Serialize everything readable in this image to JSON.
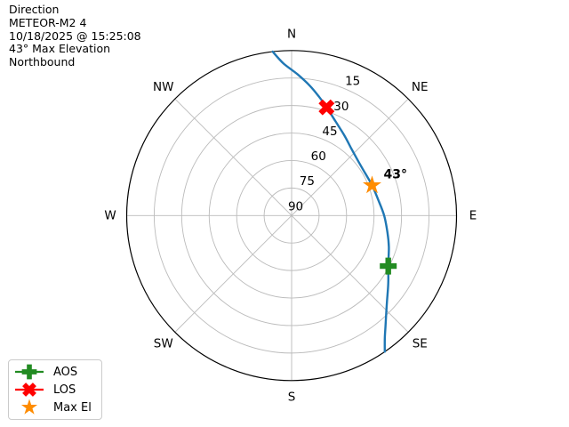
{
  "header": {
    "lines": [
      "Direction",
      "METEOR-M2 4",
      "10/18/2025 @ 15:25:08",
      "43° Max Elevation",
      "Northbound"
    ]
  },
  "legend": {
    "items": [
      {
        "label": "AOS",
        "symbol": "plus"
      },
      {
        "label": "LOS",
        "symbol": "x"
      },
      {
        "label": "Max El",
        "symbol": "star"
      }
    ]
  },
  "colors": {
    "track_blue": "#1f77b4",
    "aos_green": "#228b22",
    "los_red": "#ff0000",
    "max_el_orange": "#ff8c00",
    "grid_gray": "#bbbbbb",
    "horizon_black": "#000000",
    "text_black": "#000000",
    "legend_border": "#cbcbcb"
  },
  "chart_data": {
    "type": "line",
    "projection": "polar-skyplot",
    "title": "Direction",
    "satellite": "METEOR-M2 4",
    "pass_time": "10/18/2025 @ 15:25:08",
    "max_elevation_deg": 43,
    "pass_direction": "Northbound",
    "elevation_axis": {
      "outer_edge": 0,
      "center": 90
    },
    "compass_labels": [
      {
        "label": "N",
        "az": 0
      },
      {
        "label": "NE",
        "az": 45
      },
      {
        "label": "E",
        "az": 90
      },
      {
        "label": "SE",
        "az": 135
      },
      {
        "label": "S",
        "az": 180
      },
      {
        "label": "SW",
        "az": 225
      },
      {
        "label": "W",
        "az": 270
      },
      {
        "label": "NW",
        "az": 315
      }
    ],
    "elevation_rings": [
      15,
      30,
      45,
      60,
      75
    ],
    "ring_tick_labels": [
      {
        "text": "15",
        "el": 15
      },
      {
        "text": "30",
        "el": 30
      },
      {
        "text": "45",
        "el": 45
      },
      {
        "text": "60",
        "el": 60
      },
      {
        "text": "75",
        "el": 75
      },
      {
        "text": "90",
        "el": 90
      }
    ],
    "track_az_el": [
      [
        353.4,
        0
      ],
      [
        357,
        7
      ],
      [
        2.5,
        13
      ],
      [
        8,
        18.5
      ],
      [
        13,
        23.5
      ],
      [
        18,
        28
      ],
      [
        25,
        33.3
      ],
      [
        33,
        37.5
      ],
      [
        41,
        40.8
      ],
      [
        48,
        42.6
      ],
      [
        56,
        43.6
      ],
      [
        63,
        43.6
      ],
      [
        69.5,
        43.1
      ],
      [
        80,
        41.9
      ],
      [
        90,
        39.5
      ],
      [
        100,
        36.9
      ],
      [
        108,
        34.2
      ],
      [
        117.6,
        30.5
      ],
      [
        125,
        25.6
      ],
      [
        132.4,
        19.6
      ],
      [
        139.7,
        10.8
      ],
      [
        143,
        5.5
      ],
      [
        145.6,
        0
      ]
    ],
    "markers": [
      {
        "name": "AOS",
        "symbol": "plus",
        "color_key": "aos_green",
        "az": 117.6,
        "el": 30.5
      },
      {
        "name": "LOS",
        "symbol": "x",
        "color_key": "los_red",
        "az": 17.9,
        "el": 28
      },
      {
        "name": "Max El",
        "symbol": "star",
        "color_key": "max_el_orange",
        "az": 69.5,
        "el": 43.1
      }
    ],
    "annotation": {
      "text": "43°",
      "az": 69.5,
      "el": 43.1
    }
  }
}
